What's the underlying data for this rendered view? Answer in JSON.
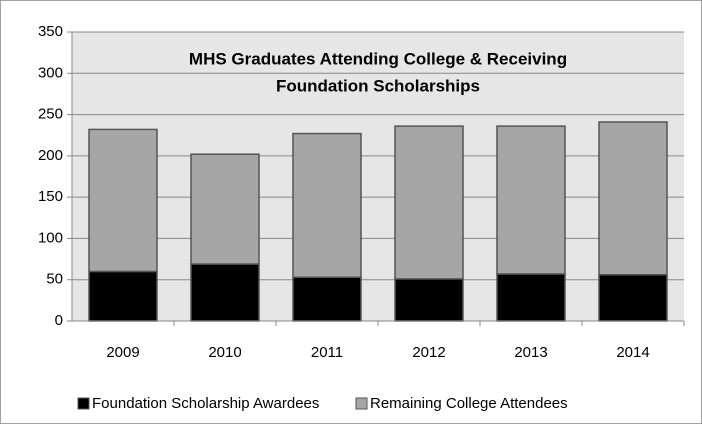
{
  "chart_data": {
    "type": "stacked_bar",
    "title": [
      "MHS Graduates Attending College & Receiving",
      "Foundation Scholarships"
    ],
    "categories": [
      "2009",
      "2010",
      "2011",
      "2012",
      "2013",
      "2014"
    ],
    "series": [
      {
        "name": "Foundation Scholarship Awardees",
        "color": "#000000",
        "values": [
          60,
          69,
          53,
          51,
          57,
          56
        ]
      },
      {
        "name": "Remaining College Attendees",
        "color": "#a6a6a6",
        "values": [
          172,
          133,
          174,
          185,
          179,
          185
        ]
      }
    ],
    "ylim": [
      0,
      350
    ],
    "yticks": [
      0,
      50,
      100,
      150,
      200,
      250,
      300,
      350
    ],
    "grid": true,
    "legend": "bottom"
  }
}
